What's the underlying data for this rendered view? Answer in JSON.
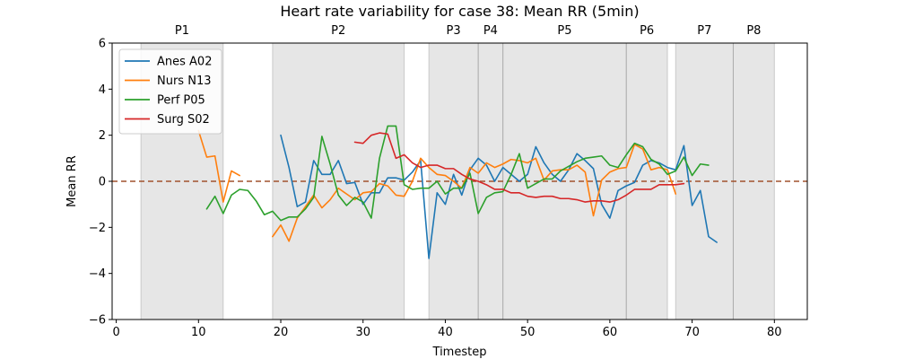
{
  "chart_data": {
    "type": "line",
    "title": "Heart rate variability for case 38: Mean RR (5min)",
    "xlabel": "Timestep",
    "ylabel": "Mean RR",
    "xlim": [
      -0.5,
      84
    ],
    "ylim": [
      -6,
      6
    ],
    "xticks": [
      0,
      10,
      20,
      30,
      40,
      50,
      60,
      70,
      80
    ],
    "yticks": [
      -6,
      -4,
      -2,
      0,
      2,
      4,
      6
    ],
    "ytick_labels": [
      "−6",
      "−4",
      "−2",
      "0",
      "2",
      "4",
      "6"
    ],
    "grid": false,
    "legend_position": "top-left",
    "reference_line": {
      "y": 0,
      "color": "#a0522d",
      "style": "dashed"
    },
    "phases": [
      {
        "label": "P1",
        "start": 3,
        "end": 13
      },
      {
        "label": "P2",
        "start": 19,
        "end": 35
      },
      {
        "label": "P3",
        "start": 38,
        "end": 44
      },
      {
        "label": "P4",
        "start": 44,
        "end": 47
      },
      {
        "label": "P5",
        "start": 47,
        "end": 62
      },
      {
        "label": "P6",
        "start": 62,
        "end": 67
      },
      {
        "label": "P7",
        "start": 68,
        "end": 75
      },
      {
        "label": "P8",
        "start": 75,
        "end": 80
      }
    ],
    "series": [
      {
        "name": "Anes A02",
        "color": "#1f77b4",
        "points": [
          [
            20,
            2.0
          ],
          [
            21,
            0.6
          ],
          [
            22,
            -1.1
          ],
          [
            23,
            -0.9
          ],
          [
            24,
            0.9
          ],
          [
            25,
            0.3
          ],
          [
            26,
            0.3
          ],
          [
            27,
            0.9
          ],
          [
            28,
            -0.1
          ],
          [
            29,
            -0.05
          ],
          [
            30,
            -1.0
          ],
          [
            31,
            -0.5
          ],
          [
            32,
            -0.5
          ],
          [
            33,
            0.15
          ],
          [
            34,
            0.15
          ],
          [
            35,
            0.05
          ],
          [
            36,
            0.4
          ],
          [
            37,
            0.9
          ],
          [
            38,
            -3.35
          ],
          [
            39,
            -0.5
          ],
          [
            40,
            -1.0
          ],
          [
            41,
            0.3
          ],
          [
            42,
            -0.6
          ],
          [
            43,
            0.5
          ],
          [
            44,
            1.0
          ],
          [
            45,
            0.7
          ],
          [
            46,
            0.0
          ],
          [
            47,
            0.6
          ],
          [
            48,
            0.3
          ],
          [
            49,
            0.0
          ],
          [
            50,
            0.3
          ],
          [
            51,
            1.5
          ],
          [
            52,
            0.8
          ],
          [
            53,
            0.3
          ],
          [
            54,
            0.0
          ],
          [
            55,
            0.5
          ],
          [
            56,
            1.2
          ],
          [
            57,
            0.9
          ],
          [
            58,
            0.55
          ],
          [
            59,
            -1.0
          ],
          [
            60,
            -1.6
          ],
          [
            61,
            -0.4
          ],
          [
            62,
            -0.2
          ],
          [
            63,
            -0.05
          ],
          [
            64,
            0.7
          ],
          [
            65,
            0.9
          ],
          [
            66,
            0.8
          ],
          [
            67,
            0.6
          ],
          [
            68,
            0.5
          ],
          [
            69,
            1.55
          ],
          [
            70,
            -1.05
          ],
          [
            71,
            -0.4
          ],
          [
            72,
            -2.4
          ],
          [
            73,
            -2.65
          ]
        ]
      },
      {
        "name": "Nurs N13",
        "color": "#ff7f0e",
        "points": [
          [
            10,
            2.2
          ],
          [
            11,
            1.05
          ],
          [
            12,
            1.1
          ],
          [
            13,
            -0.9
          ],
          [
            14,
            0.45
          ],
          [
            15,
            0.25
          ],
          [
            19,
            -2.4
          ],
          [
            20,
            -1.9
          ],
          [
            21,
            -2.6
          ],
          [
            22,
            -1.6
          ],
          [
            23,
            -1.1
          ],
          [
            24,
            -0.6
          ],
          [
            25,
            -1.15
          ],
          [
            26,
            -0.8
          ],
          [
            27,
            -0.3
          ],
          [
            28,
            -0.55
          ],
          [
            29,
            -0.8
          ],
          [
            30,
            -0.5
          ],
          [
            31,
            -0.45
          ],
          [
            32,
            -0.1
          ],
          [
            33,
            -0.2
          ],
          [
            34,
            -0.6
          ],
          [
            35,
            -0.65
          ],
          [
            36,
            0.0
          ],
          [
            37,
            1.0
          ],
          [
            38,
            0.6
          ],
          [
            39,
            0.3
          ],
          [
            40,
            0.25
          ],
          [
            41,
            0.0
          ],
          [
            42,
            -0.3
          ],
          [
            43,
            0.6
          ],
          [
            44,
            0.35
          ],
          [
            45,
            0.8
          ],
          [
            46,
            0.6
          ],
          [
            47,
            0.75
          ],
          [
            48,
            0.95
          ],
          [
            49,
            0.9
          ],
          [
            50,
            0.8
          ],
          [
            51,
            1.0
          ],
          [
            52,
            0.05
          ],
          [
            53,
            0.45
          ],
          [
            54,
            0.5
          ],
          [
            55,
            0.5
          ],
          [
            56,
            0.7
          ],
          [
            57,
            0.4
          ],
          [
            58,
            -1.5
          ],
          [
            59,
            0.05
          ],
          [
            60,
            0.4
          ],
          [
            61,
            0.55
          ],
          [
            62,
            0.6
          ],
          [
            63,
            1.6
          ],
          [
            64,
            1.4
          ],
          [
            65,
            0.5
          ],
          [
            66,
            0.6
          ],
          [
            67,
            0.5
          ],
          [
            68,
            -0.55
          ]
        ]
      },
      {
        "name": "Perf P05",
        "color": "#2ca02c",
        "points": [
          [
            11,
            -1.2
          ],
          [
            12,
            -0.65
          ],
          [
            13,
            -1.4
          ],
          [
            14,
            -0.6
          ],
          [
            15,
            -0.35
          ],
          [
            16,
            -0.4
          ],
          [
            17,
            -0.85
          ],
          [
            18,
            -1.45
          ],
          [
            19,
            -1.3
          ],
          [
            20,
            -1.7
          ],
          [
            21,
            -1.55
          ],
          [
            22,
            -1.55
          ],
          [
            23,
            -1.2
          ],
          [
            24,
            -0.7
          ],
          [
            25,
            1.95
          ],
          [
            26,
            0.75
          ],
          [
            27,
            -0.6
          ],
          [
            28,
            -1.05
          ],
          [
            29,
            -0.7
          ],
          [
            30,
            -0.9
          ],
          [
            31,
            -1.6
          ],
          [
            32,
            1.0
          ],
          [
            33,
            2.4
          ],
          [
            34,
            2.4
          ],
          [
            35,
            -0.15
          ],
          [
            36,
            -0.35
          ],
          [
            37,
            -0.3
          ],
          [
            38,
            -0.3
          ],
          [
            39,
            0.0
          ],
          [
            40,
            -0.55
          ],
          [
            41,
            -0.3
          ],
          [
            42,
            -0.3
          ],
          [
            43,
            0.35
          ],
          [
            44,
            -1.4
          ],
          [
            45,
            -0.7
          ],
          [
            46,
            -0.5
          ],
          [
            47,
            -0.45
          ],
          [
            48,
            0.3
          ],
          [
            49,
            1.2
          ],
          [
            50,
            -0.3
          ],
          [
            51,
            -0.1
          ],
          [
            52,
            0.1
          ],
          [
            53,
            0.1
          ],
          [
            54,
            0.45
          ],
          [
            55,
            0.65
          ],
          [
            56,
            0.85
          ],
          [
            57,
            1.0
          ],
          [
            58,
            1.05
          ],
          [
            59,
            1.1
          ],
          [
            60,
            0.7
          ],
          [
            61,
            0.6
          ],
          [
            62,
            1.15
          ],
          [
            63,
            1.65
          ],
          [
            64,
            1.5
          ],
          [
            65,
            0.95
          ],
          [
            66,
            0.75
          ],
          [
            67,
            0.3
          ],
          [
            68,
            0.45
          ],
          [
            69,
            1.05
          ],
          [
            70,
            0.25
          ],
          [
            71,
            0.75
          ],
          [
            72,
            0.7
          ]
        ]
      },
      {
        "name": "Surg S02",
        "color": "#d62728",
        "points": [
          [
            29,
            1.7
          ],
          [
            30,
            1.65
          ],
          [
            31,
            2.0
          ],
          [
            32,
            2.1
          ],
          [
            33,
            2.05
          ],
          [
            34,
            1.0
          ],
          [
            35,
            1.15
          ],
          [
            36,
            0.8
          ],
          [
            37,
            0.6
          ],
          [
            38,
            0.7
          ],
          [
            39,
            0.7
          ],
          [
            40,
            0.55
          ],
          [
            41,
            0.55
          ],
          [
            42,
            0.3
          ],
          [
            43,
            0.1
          ],
          [
            44,
            0.0
          ],
          [
            45,
            -0.15
          ],
          [
            46,
            -0.35
          ],
          [
            47,
            -0.35
          ],
          [
            48,
            -0.5
          ],
          [
            49,
            -0.5
          ],
          [
            50,
            -0.65
          ],
          [
            51,
            -0.7
          ],
          [
            52,
            -0.65
          ],
          [
            53,
            -0.65
          ],
          [
            54,
            -0.75
          ],
          [
            55,
            -0.75
          ],
          [
            56,
            -0.8
          ],
          [
            57,
            -0.9
          ],
          [
            58,
            -0.85
          ],
          [
            59,
            -0.85
          ],
          [
            60,
            -0.9
          ],
          [
            61,
            -0.8
          ],
          [
            62,
            -0.6
          ],
          [
            63,
            -0.35
          ],
          [
            64,
            -0.35
          ],
          [
            65,
            -0.35
          ],
          [
            66,
            -0.15
          ],
          [
            67,
            -0.15
          ],
          [
            68,
            -0.15
          ],
          [
            69,
            -0.1
          ]
        ]
      }
    ]
  }
}
